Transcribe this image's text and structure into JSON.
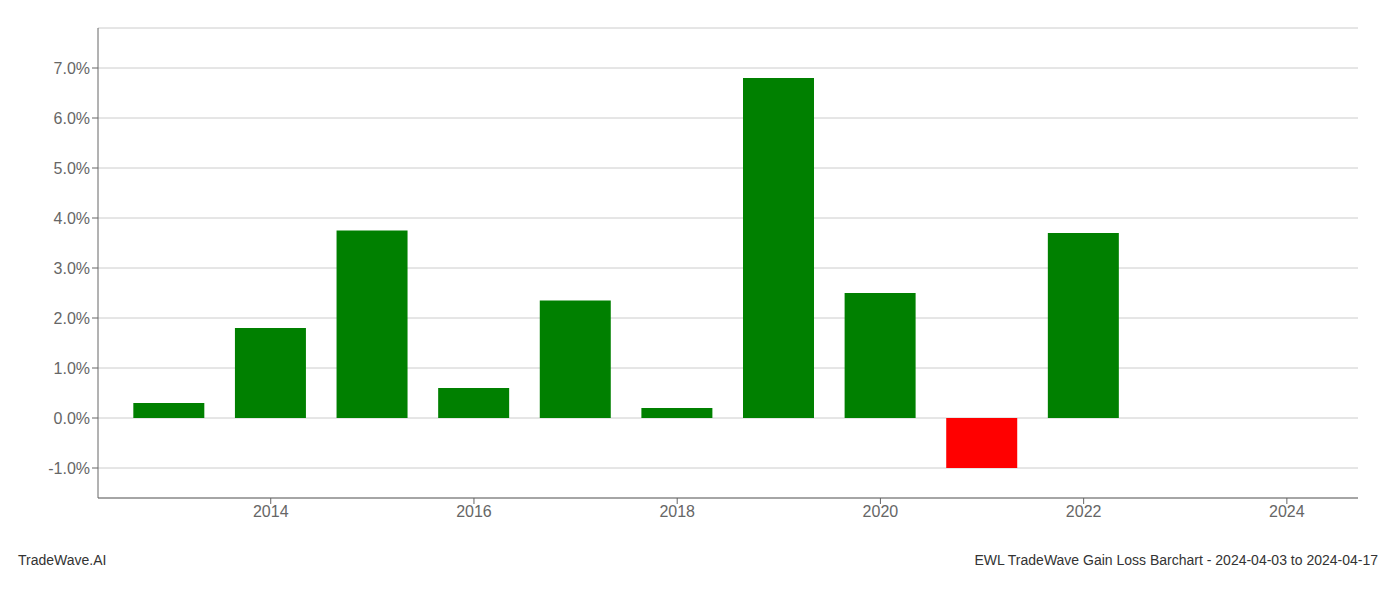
{
  "chart_data": {
    "type": "bar",
    "x": [
      2013,
      2014,
      2015,
      2016,
      2017,
      2018,
      2019,
      2020,
      2021,
      2022
    ],
    "values": [
      0.003,
      0.018,
      0.0375,
      0.006,
      0.0235,
      0.002,
      0.068,
      0.025,
      -0.01,
      0.037
    ],
    "colors": [
      "#008000",
      "#008000",
      "#008000",
      "#008000",
      "#008000",
      "#008000",
      "#008000",
      "#008000",
      "#ff0000",
      "#008000"
    ],
    "xlim": [
      2012.3,
      2024.7
    ],
    "xticks": [
      2014,
      2016,
      2018,
      2020,
      2022,
      2024
    ],
    "ylim": [
      -0.016,
      0.078
    ],
    "yticks": [
      {
        "value": -0.01,
        "label": "-1.0%"
      },
      {
        "value": 0,
        "label": "0.0%"
      },
      {
        "value": 0.01,
        "label": "1.0%"
      },
      {
        "value": 0.02,
        "label": "2.0%"
      },
      {
        "value": 0.03,
        "label": "3.0%"
      },
      {
        "value": 0.04,
        "label": "4.0%"
      },
      {
        "value": 0.05,
        "label": "5.0%"
      },
      {
        "value": 0.06,
        "label": "6.0%"
      },
      {
        "value": 0.07,
        "label": "7.0%"
      }
    ],
    "grid": true,
    "annotations": [
      "TradeWave.AI",
      "EWL TradeWave Gain Loss Barchart - 2024-04-03 to 2024-04-17"
    ]
  }
}
